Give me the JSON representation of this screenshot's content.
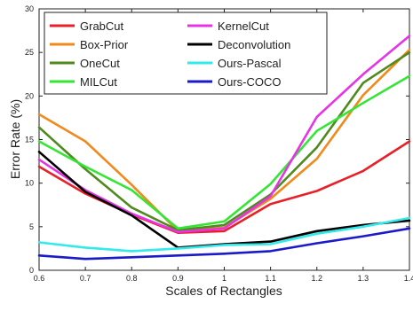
{
  "chart_data": {
    "type": "line",
    "title": "",
    "xlabel": "Scales of Rectangles",
    "ylabel": "Error Rate (%)",
    "xlim": [
      0.6,
      1.4
    ],
    "ylim": [
      0,
      30
    ],
    "grid": false,
    "legend_placement": "top",
    "x": [
      0.6,
      0.7,
      0.8,
      0.9,
      1.0,
      1.1,
      1.2,
      1.3,
      1.4
    ],
    "x_tick_labels": [
      "0.6",
      "0.7",
      "0.8",
      "0.9",
      "1",
      "1.1",
      "1.2",
      "1.3",
      "1.4"
    ],
    "y_ticks": [
      0,
      5,
      10,
      15,
      20,
      25,
      30
    ],
    "y_tick_labels": [
      "0",
      "5",
      "10",
      "15",
      "20",
      "25",
      "30"
    ],
    "series": [
      {
        "name": "GrabCut",
        "color": "#e8202a",
        "values": [
          11.9,
          8.8,
          6.4,
          4.3,
          4.5,
          7.6,
          9.1,
          11.4,
          14.8
        ]
      },
      {
        "name": "Box-Prior",
        "color": "#f08a1c",
        "values": [
          17.9,
          14.8,
          9.8,
          4.5,
          4.9,
          8.2,
          12.8,
          20.1,
          25.3
        ]
      },
      {
        "name": "OneCut",
        "color": "#4f8a1f",
        "values": [
          16.4,
          11.6,
          7.2,
          4.6,
          5.2,
          8.7,
          14.1,
          21.5,
          25.0
        ]
      },
      {
        "name": "MILCut",
        "color": "#33e633",
        "values": [
          14.8,
          11.9,
          9.2,
          4.8,
          5.6,
          9.9,
          16.0,
          19.2,
          22.3
        ]
      },
      {
        "name": "KernelCut",
        "color": "#e633e6",
        "values": [
          12.7,
          9.2,
          6.5,
          4.4,
          4.8,
          8.5,
          17.6,
          22.5,
          26.9
        ]
      },
      {
        "name": "Deconvolution",
        "color": "#000000",
        "values": [
          13.6,
          9.0,
          6.3,
          2.6,
          3.0,
          3.3,
          4.5,
          5.2,
          5.7
        ]
      },
      {
        "name": "Ours-Pascal",
        "color": "#33eaea",
        "values": [
          3.2,
          2.6,
          2.2,
          2.5,
          2.9,
          3.0,
          4.2,
          5.0,
          6.0
        ]
      },
      {
        "name": "Ours-COCO",
        "color": "#1a1ac8",
        "values": [
          1.7,
          1.3,
          1.5,
          1.7,
          1.9,
          2.2,
          3.1,
          3.9,
          4.8
        ]
      }
    ]
  }
}
